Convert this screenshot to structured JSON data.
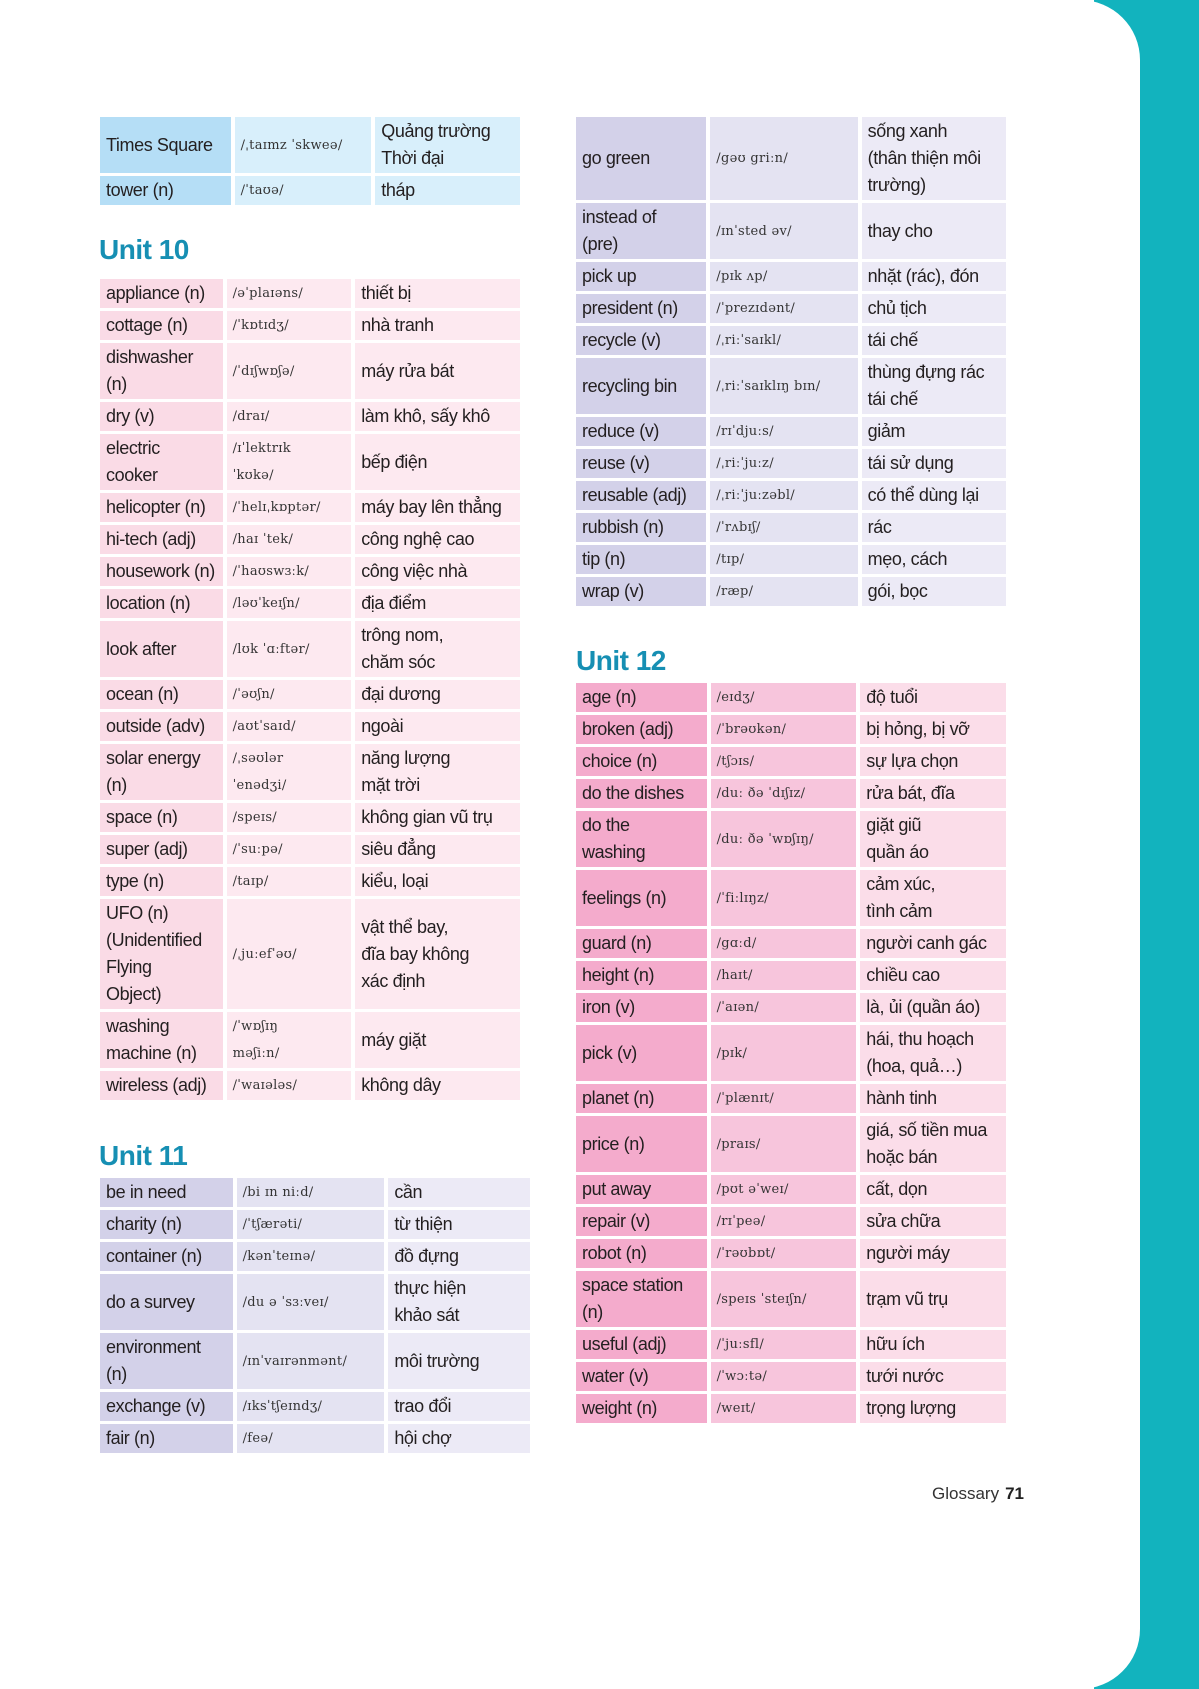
{
  "colors": {
    "unit_title": "#168fb3",
    "side_band": "#12b3be"
  },
  "intro_table": {
    "rows": [
      {
        "word": "Times Square",
        "ipa": "/ˌtaɪmz ˈskweə/",
        "meaning": "Quảng trường\nThời đại"
      },
      {
        "word": "tower (n)",
        "ipa": "/ˈtaʊə/",
        "meaning": "tháp"
      }
    ]
  },
  "unit10": {
    "title": "Unit 10",
    "rows": [
      {
        "word": "appliance (n)",
        "ipa": "/əˈplaɪəns/",
        "meaning": "thiết bị"
      },
      {
        "word": "cottage (n)",
        "ipa": "/ˈkɒtɪdʒ/",
        "meaning": "nhà tranh"
      },
      {
        "word": "dishwasher\n(n)",
        "ipa": "/ˈdɪʃwɒʃə/",
        "meaning": "máy rửa bát"
      },
      {
        "word": "dry (v)",
        "ipa": "/draɪ/",
        "meaning": "làm khô, sấy khô"
      },
      {
        "word": "electric\ncooker",
        "ipa": "/ɪˈlektrɪk\nˈkʊkə/",
        "meaning": "bếp điện"
      },
      {
        "word": "helicopter (n)",
        "ipa": "/ˈhelɪˌkɒptər/",
        "meaning": "máy bay lên thẳng"
      },
      {
        "word": "hi-tech (adj)",
        "ipa": "/haɪ ˈtek/",
        "meaning": "công nghệ cao"
      },
      {
        "word": "housework (n)",
        "ipa": "/ˈhaʊswɜːk/",
        "meaning": "công việc nhà"
      },
      {
        "word": "location (n)",
        "ipa": "/ləʊˈkeɪʃn/",
        "meaning": "địa điểm"
      },
      {
        "word": "look after",
        "ipa": "/lʊk ˈɑːftər/",
        "meaning": "trông nom,\nchăm sóc"
      },
      {
        "word": "ocean (n)",
        "ipa": "/ˈəʊʃn/",
        "meaning": "đại dương"
      },
      {
        "word": "outside (adv)",
        "ipa": "/aʊtˈsaɪd/",
        "meaning": "ngoài"
      },
      {
        "word": "solar energy\n(n)",
        "ipa": "/ˌsəʊlər\nˈenədʒi/",
        "meaning": "năng lượng\nmặt trời"
      },
      {
        "word": "space (n)",
        "ipa": "/speɪs/",
        "meaning": "không gian vũ trụ"
      },
      {
        "word": "super (adj)",
        "ipa": "/ˈsuːpə/",
        "meaning": "siêu đẳng"
      },
      {
        "word": "type (n)",
        "ipa": "/taɪp/",
        "meaning": "kiểu, loại"
      },
      {
        "word": "UFO (n)\n(Unidentified\nFlying\nObject)",
        "ipa": "/ˌjuːefˈəʊ/",
        "meaning": "vật thể bay,\nđĩa bay không\nxác định"
      },
      {
        "word": "washing\nmachine (n)",
        "ipa": "/ˈwɒʃɪŋ\nməʃiːn/",
        "meaning": "máy giặt"
      },
      {
        "word": "wireless (adj)",
        "ipa": "/ˈwaɪələs/",
        "meaning": "không dây"
      }
    ]
  },
  "unit11": {
    "title": "Unit 11",
    "rows": [
      {
        "word": "be in need",
        "ipa": "/bi ɪn niːd/",
        "meaning": "cần"
      },
      {
        "word": "charity (n)",
        "ipa": "/ˈtʃærəti/",
        "meaning": "từ thiện"
      },
      {
        "word": "container (n)",
        "ipa": "/kənˈteɪnə/",
        "meaning": "đồ đựng"
      },
      {
        "word": "do a survey",
        "ipa": "/du ə ˈsɜːveɪ/",
        "meaning": "thực hiện\nkhảo sát"
      },
      {
        "word": "environment\n(n)",
        "ipa": "/ɪnˈvaɪrənmənt/",
        "meaning": "môi trường"
      },
      {
        "word": "exchange (v)",
        "ipa": "/ɪksˈtʃeɪndʒ/",
        "meaning": "trao đổi"
      },
      {
        "word": "fair (n)",
        "ipa": "/feə/",
        "meaning": "hội chợ"
      }
    ],
    "continued_rows": [
      {
        "word": "go green",
        "ipa": "/gəʊ griːn/",
        "meaning": "sống xanh\n(thân thiện môi\ntrường)"
      },
      {
        "word": "instead of\n(pre)",
        "ipa": "/ɪnˈsted əv/",
        "meaning": "thay cho"
      },
      {
        "word": "pick up",
        "ipa": "/pɪk ʌp/",
        "meaning": "nhặt (rác), đón"
      },
      {
        "word": "president (n)",
        "ipa": "/ˈprezɪdənt/",
        "meaning": "chủ tịch"
      },
      {
        "word": "recycle (v)",
        "ipa": "/ˌriːˈsaɪkl/",
        "meaning": "tái chế"
      },
      {
        "word": "recycling bin",
        "ipa": "/ˌriːˈsaɪklɪŋ bɪn/",
        "meaning": "thùng đựng rác\ntái chế"
      },
      {
        "word": "reduce (v)",
        "ipa": "/rɪˈdjuːs/",
        "meaning": "giảm"
      },
      {
        "word": "reuse (v)",
        "ipa": "/ˌriːˈjuːz/",
        "meaning": "tái sử dụng"
      },
      {
        "word": "reusable (adj)",
        "ipa": "/ˌriːˈjuːzəbl/",
        "meaning": "có thể dùng lại"
      },
      {
        "word": "rubbish (n)",
        "ipa": "/ˈrʌbɪʃ/",
        "meaning": "rác"
      },
      {
        "word": "tip (n)",
        "ipa": "/tɪp/",
        "meaning": "mẹo, cách"
      },
      {
        "word": "wrap (v)",
        "ipa": "/ræp/",
        "meaning": "gói, bọc"
      }
    ]
  },
  "unit12": {
    "title": "Unit 12",
    "rows": [
      {
        "word": "age (n)",
        "ipa": "/eɪdʒ/",
        "meaning": "độ tuổi"
      },
      {
        "word": "broken (adj)",
        "ipa": "/ˈbrəʊkən/",
        "meaning": "bị hỏng, bị vỡ"
      },
      {
        "word": "choice (n)",
        "ipa": "/tʃɔɪs/",
        "meaning": "sự lựa chọn"
      },
      {
        "word": "do the dishes",
        "ipa": "/duː ðə ˈdɪʃɪz/",
        "meaning": "rửa bát, đĩa"
      },
      {
        "word": "do the\nwashing",
        "ipa": "/duː ðə ˈwɒʃɪŋ/",
        "meaning": "giặt giũ\nquần áo"
      },
      {
        "word": "feelings (n)",
        "ipa": "/ˈfiːlɪŋz/",
        "meaning": "cảm xúc,\ntình cảm"
      },
      {
        "word": "guard (n)",
        "ipa": "/gɑːd/",
        "meaning": "người canh gác"
      },
      {
        "word": "height (n)",
        "ipa": "/haɪt/",
        "meaning": "chiều cao"
      },
      {
        "word": "iron (v)",
        "ipa": "/ˈaɪən/",
        "meaning": "là, ủi (quần áo)"
      },
      {
        "word": "pick (v)",
        "ipa": "/pɪk/",
        "meaning": "hái, thu hoạch\n(hoa, quả…)"
      },
      {
        "word": "planet (n)",
        "ipa": "/ˈplænɪt/",
        "meaning": "hành tinh"
      },
      {
        "word": "price (n)",
        "ipa": "/praɪs/",
        "meaning": "giá, số tiền mua\nhoặc bán"
      },
      {
        "word": "put away",
        "ipa": "/pʊt əˈweɪ/",
        "meaning": "cất, dọn"
      },
      {
        "word": "repair (v)",
        "ipa": "/rɪˈpeə/",
        "meaning": "sửa chữa"
      },
      {
        "word": "robot (n)",
        "ipa": "/ˈrəʊbɒt/",
        "meaning": "người máy"
      },
      {
        "word": "space station\n(n)",
        "ipa": "/speɪs ˈsteɪʃn/",
        "meaning": "trạm vũ trụ"
      },
      {
        "word": "useful (adj)",
        "ipa": "/ˈjuːsfl/",
        "meaning": "hữu ích"
      },
      {
        "word": "water (v)",
        "ipa": "/ˈwɔːtə/",
        "meaning": "tưới nước"
      },
      {
        "word": "weight (n)",
        "ipa": "/weɪt/",
        "meaning": "trọng lượng"
      }
    ]
  },
  "footer": {
    "section": "Glossary",
    "page_number": "71"
  }
}
